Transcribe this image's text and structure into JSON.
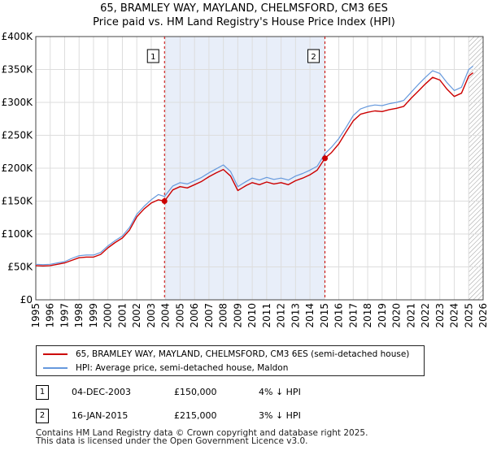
{
  "title_line1": "65, BRAMLEY WAY, MAYLAND, CHELMSFORD, CM3 6ES",
  "title_line2": "Price paid vs. HM Land Registry's House Price Index (HPI)",
  "colors": {
    "price": "#cc0000",
    "hpi": "#6699dd",
    "shade": "#e8eef9",
    "marker": "#cc0000"
  },
  "chart_data": {
    "type": "line",
    "xlim": [
      1995,
      2026
    ],
    "ylim": [
      0,
      400000
    ],
    "yticks": [
      0,
      50000,
      100000,
      150000,
      200000,
      250000,
      300000,
      350000,
      400000
    ],
    "ytick_labels": [
      "£0",
      "£50K",
      "£100K",
      "£150K",
      "£200K",
      "£250K",
      "£300K",
      "£350K",
      "£400K"
    ],
    "xticks": [
      1995,
      1996,
      1997,
      1998,
      1999,
      2000,
      2001,
      2002,
      2003,
      2004,
      2005,
      2006,
      2007,
      2008,
      2009,
      2010,
      2011,
      2012,
      2013,
      2014,
      2015,
      2016,
      2017,
      2018,
      2019,
      2020,
      2021,
      2022,
      2023,
      2024,
      2025,
      2026
    ],
    "shaded_region": [
      2003.92,
      2015.04
    ],
    "hatch_from": 2025.0,
    "series": [
      {
        "name": "hpi",
        "x": [
          1995,
          1995.5,
          1996,
          1996.5,
          1997,
          1997.5,
          1998,
          1998.5,
          1999,
          1999.5,
          2000,
          2000.5,
          2001,
          2001.5,
          2002,
          2002.5,
          2003,
          2003.5,
          2003.92,
          2004.5,
          2005,
          2005.5,
          2006,
          2006.5,
          2007,
          2007.5,
          2008,
          2008.5,
          2009,
          2009.3,
          2009.6,
          2010,
          2010.5,
          2011,
          2011.5,
          2012,
          2012.5,
          2013,
          2013.5,
          2014,
          2014.5,
          2015.04,
          2015.5,
          2016,
          2016.5,
          2017,
          2017.5,
          2018,
          2018.5,
          2019,
          2019.5,
          2020,
          2020.5,
          2021,
          2021.5,
          2022,
          2022.5,
          2023,
          2023.5,
          2024,
          2024.5,
          2025,
          2025.3
        ],
        "y": [
          54000,
          53500,
          54000,
          56000,
          58000,
          63000,
          67000,
          68000,
          68000,
          72000,
          82000,
          90000,
          97000,
          110000,
          130000,
          142000,
          152000,
          160000,
          157000,
          173000,
          178000,
          176000,
          181000,
          186000,
          193000,
          199000,
          205000,
          195000,
          172000,
          176000,
          180000,
          185000,
          182000,
          186000,
          183000,
          185000,
          182000,
          188000,
          192000,
          197000,
          203000,
          222000,
          232000,
          245000,
          262000,
          280000,
          290000,
          294000,
          296000,
          295000,
          298000,
          300000,
          303000,
          315000,
          327000,
          338000,
          348000,
          344000,
          330000,
          318000,
          323000,
          350000,
          355000
        ]
      },
      {
        "name": "price",
        "x": [
          1995,
          1995.5,
          1996,
          1996.5,
          1997,
          1997.5,
          1998,
          1998.5,
          1999,
          1999.5,
          2000,
          2000.5,
          2001,
          2001.5,
          2002,
          2002.5,
          2003,
          2003.5,
          2003.92,
          2004.5,
          2005,
          2005.5,
          2006,
          2006.5,
          2007,
          2007.5,
          2008,
          2008.5,
          2009,
          2009.3,
          2009.6,
          2010,
          2010.5,
          2011,
          2011.5,
          2012,
          2012.5,
          2013,
          2013.5,
          2014,
          2014.5,
          2015.04,
          2015.5,
          2016,
          2016.5,
          2017,
          2017.5,
          2018,
          2018.5,
          2019,
          2019.5,
          2020,
          2020.5,
          2021,
          2021.5,
          2022,
          2022.5,
          2023,
          2023.5,
          2024,
          2024.5,
          2025,
          2025.3
        ],
        "y": [
          52000,
          51500,
          52000,
          54000,
          56000,
          60000,
          64000,
          65000,
          65000,
          69000,
          79000,
          87000,
          94000,
          106000,
          126000,
          138000,
          147000,
          152000,
          150000,
          167000,
          172000,
          170000,
          175000,
          180000,
          187000,
          193000,
          198000,
          188000,
          166000,
          170000,
          174000,
          178000,
          175000,
          179000,
          176000,
          178000,
          175000,
          181000,
          185000,
          190000,
          197000,
          215000,
          224000,
          237000,
          255000,
          272000,
          282000,
          285000,
          287000,
          286000,
          289000,
          291000,
          294000,
          306000,
          317000,
          328000,
          338000,
          334000,
          320000,
          309000,
          314000,
          340000,
          345000
        ]
      }
    ],
    "sales": [
      {
        "id": "1",
        "x": 2003.92,
        "price": 150000
      },
      {
        "id": "2",
        "x": 2015.04,
        "price": 215000
      }
    ]
  },
  "legend": {
    "price_label": "65, BRAMLEY WAY, MAYLAND, CHELMSFORD, CM3 6ES (semi-detached house)",
    "hpi_label": "HPI: Average price, semi-detached house, Maldon"
  },
  "sales_table": [
    {
      "id": "1",
      "date": "04-DEC-2003",
      "price": "£150,000",
      "hpi": "4% ↓ HPI"
    },
    {
      "id": "2",
      "date": "16-JAN-2015",
      "price": "£215,000",
      "hpi": "3% ↓ HPI"
    }
  ],
  "footer_line1": "Contains HM Land Registry data © Crown copyright and database right 2025.",
  "footer_line2": "This data is licensed under the Open Government Licence v3.0."
}
